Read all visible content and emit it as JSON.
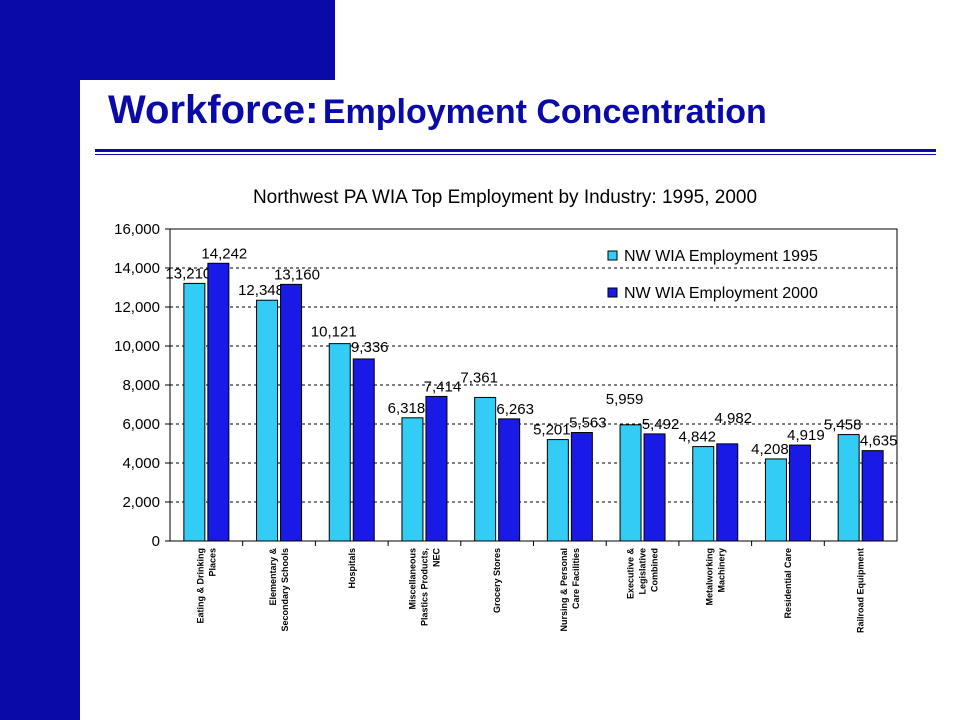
{
  "slide": {
    "title_main": "Workforce:",
    "title_sub": "Employment Concentration",
    "colors": {
      "brand": "#0a0aa8",
      "series1": "#33ccf5",
      "series2": "#1a1ae6"
    }
  },
  "chart_data": {
    "type": "bar",
    "title": "Northwest PA WIA Top Employment by Industry: 1995, 2000",
    "xlabel": "",
    "ylabel": "",
    "ylim": [
      0,
      16000
    ],
    "yticks": [
      "0",
      "2,000",
      "4,000",
      "6,000",
      "8,000",
      "10,000",
      "12,000",
      "14,000",
      "16,000"
    ],
    "ytick_values": [
      0,
      2000,
      4000,
      6000,
      8000,
      10000,
      12000,
      14000,
      16000
    ],
    "grid": "horizontal dashed",
    "legend_position": "top-right",
    "categories": [
      [
        "Eating & Drinking",
        "Places"
      ],
      [
        "Elementary &",
        "Secondary Schools"
      ],
      [
        "Hospitals"
      ],
      [
        "Miscellaneous",
        "Plastics Products,",
        "NEC"
      ],
      [
        "Grocery Stores"
      ],
      [
        "Nursing & Personal",
        "Care Facilities"
      ],
      [
        "Executive &",
        "Legislative",
        "Combined"
      ],
      [
        "Metalworking",
        "Machinery"
      ],
      [
        "Residential Care"
      ],
      [
        "Railroad Equipment"
      ]
    ],
    "series": [
      {
        "name": "NW WIA Employment 1995",
        "values": [
          13210,
          12348,
          10121,
          6318,
          7361,
          5201,
          5959,
          4842,
          4208,
          5458
        ],
        "labels": [
          "13,210",
          "12,348",
          "10,121",
          "6,318",
          "7,361",
          "5,201",
          "5,959",
          "4,842",
          "4,208",
          "5,458"
        ]
      },
      {
        "name": "NW WIA Employment 2000",
        "values": [
          14242,
          13160,
          9336,
          7414,
          6263,
          5563,
          5492,
          4982,
          4919,
          4635
        ],
        "labels": [
          "14,242",
          "13,160",
          "9,336",
          "7,414",
          "6,263",
          "5,563",
          "5,492",
          "4,982",
          "4,919",
          "4,635"
        ]
      }
    ]
  }
}
